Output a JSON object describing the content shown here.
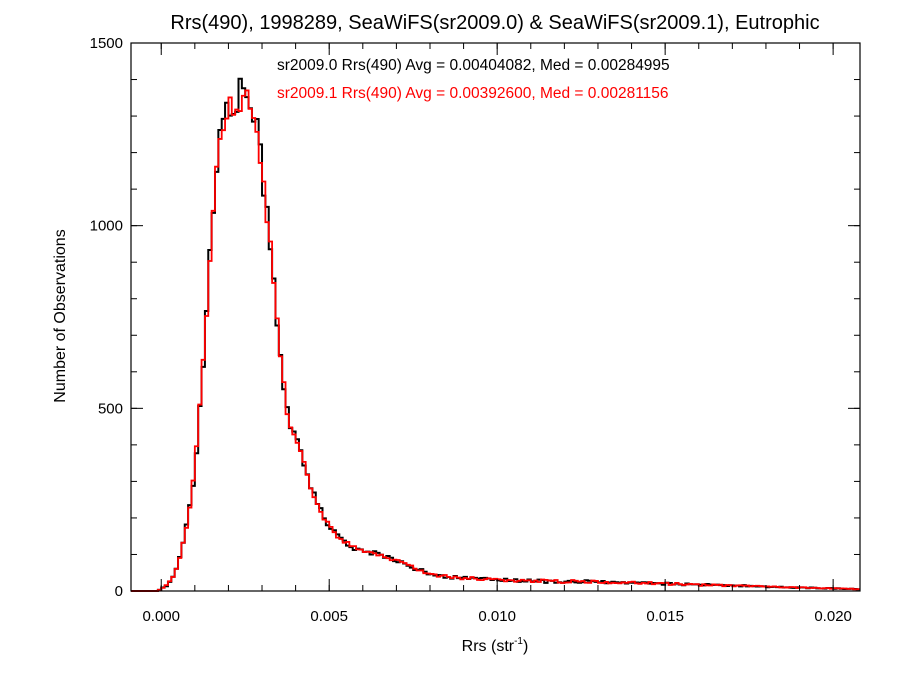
{
  "chart_data": {
    "type": "histogram",
    "title": "Rrs(490), 1998289, SeaWiFS(sr2009.0) & SeaWiFS(sr2009.1), Eutrophic",
    "xlabel_main": "Rrs (str",
    "xlabel_sup": "-1",
    "xlabel_end": ")",
    "ylabel": "Number of Observations",
    "xlim": [
      -0.0009,
      0.0208
    ],
    "ylim": [
      0,
      1500
    ],
    "x_ticks": [
      0.0,
      0.005,
      0.01,
      0.015,
      0.02
    ],
    "x_tick_labels": [
      "0.000",
      "0.005",
      "0.010",
      "0.015",
      "0.020"
    ],
    "y_ticks": [
      0,
      500,
      1000,
      1500
    ],
    "y_tick_labels": [
      "0",
      "500",
      "1000",
      "1500"
    ],
    "x_minor_step": 0.001,
    "y_minor_step": 100,
    "bin_width": 0.0001,
    "profile_x": [
      -0.0009,
      -0.0001,
      0.0,
      0.0002,
      0.0004,
      0.0006,
      0.0008,
      0.001,
      0.0012,
      0.0014,
      0.0016,
      0.0018,
      0.002,
      0.0022,
      0.0024,
      0.0026,
      0.0028,
      0.003,
      0.0032,
      0.0034,
      0.0036,
      0.0038,
      0.004,
      0.0045,
      0.005,
      0.0055,
      0.006,
      0.0065,
      0.007,
      0.0075,
      0.008,
      0.009,
      0.01,
      0.011,
      0.012,
      0.013,
      0.014,
      0.015,
      0.016,
      0.017,
      0.018,
      0.019,
      0.02,
      0.0208
    ],
    "profile_y": [
      0,
      0,
      6,
      18,
      45,
      110,
      200,
      330,
      560,
      850,
      1110,
      1280,
      1320,
      1345,
      1360,
      1365,
      1280,
      1160,
      980,
      800,
      600,
      470,
      420,
      270,
      175,
      130,
      110,
      100,
      85,
      65,
      45,
      35,
      30,
      28,
      26,
      25,
      23,
      20,
      17,
      15,
      12,
      9,
      7,
      5
    ],
    "series": [
      {
        "name": "sr2009.0",
        "color": "#000000",
        "seed": 17,
        "noise": 0.035
      },
      {
        "name": "sr2009.1",
        "color": "#ff0000",
        "seed": 91,
        "noise": 0.03
      }
    ],
    "legend": [
      {
        "text": "sr2009.0 Rrs(490) Avg = 0.00404082, Med = 0.00284995",
        "color": "#000000"
      },
      {
        "text": "sr2009.1 Rrs(490) Avg = 0.00392600, Med = 0.00281156",
        "color": "#ff0000"
      }
    ],
    "legend_position": "top-right",
    "grid": false
  }
}
